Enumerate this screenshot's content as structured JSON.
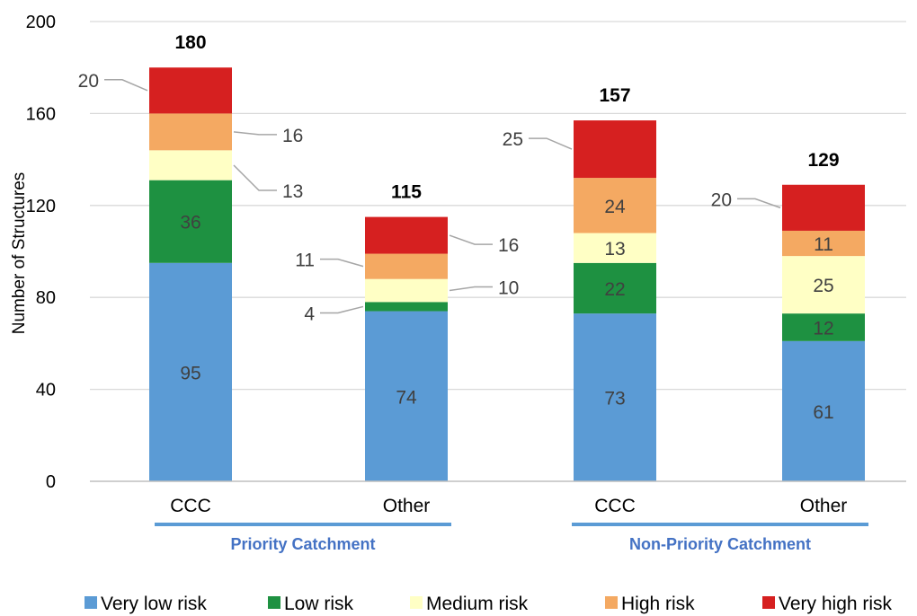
{
  "chart_data": {
    "type": "bar",
    "stacked": true,
    "ylabel": "Number of Structures",
    "ylim": [
      0,
      200
    ],
    "yticks": [
      0,
      40,
      80,
      120,
      160,
      200
    ],
    "grid": true,
    "legend_position": "bottom",
    "categories": [
      "CCC",
      "Other",
      "CCC",
      "Other"
    ],
    "groups": [
      {
        "label": "Priority Catchment",
        "categories": [
          0,
          1
        ]
      },
      {
        "label": "Non-Priority Catchment",
        "categories": [
          2,
          3
        ]
      }
    ],
    "series": [
      {
        "name": "Very low risk",
        "color": "#5b9bd5",
        "values": [
          95,
          74,
          73,
          61
        ]
      },
      {
        "name": "Low risk",
        "color": "#1e9141",
        "values": [
          36,
          4,
          22,
          12
        ]
      },
      {
        "name": "Medium risk",
        "color": "#ffffc5",
        "values": [
          13,
          10,
          13,
          25
        ]
      },
      {
        "name": "High risk",
        "color": "#f4a962",
        "values": [
          16,
          11,
          24,
          11
        ]
      },
      {
        "name": "Very high risk",
        "color": "#d62020",
        "values": [
          20,
          16,
          25,
          20
        ]
      }
    ],
    "totals": [
      180,
      115,
      157,
      129
    ]
  }
}
